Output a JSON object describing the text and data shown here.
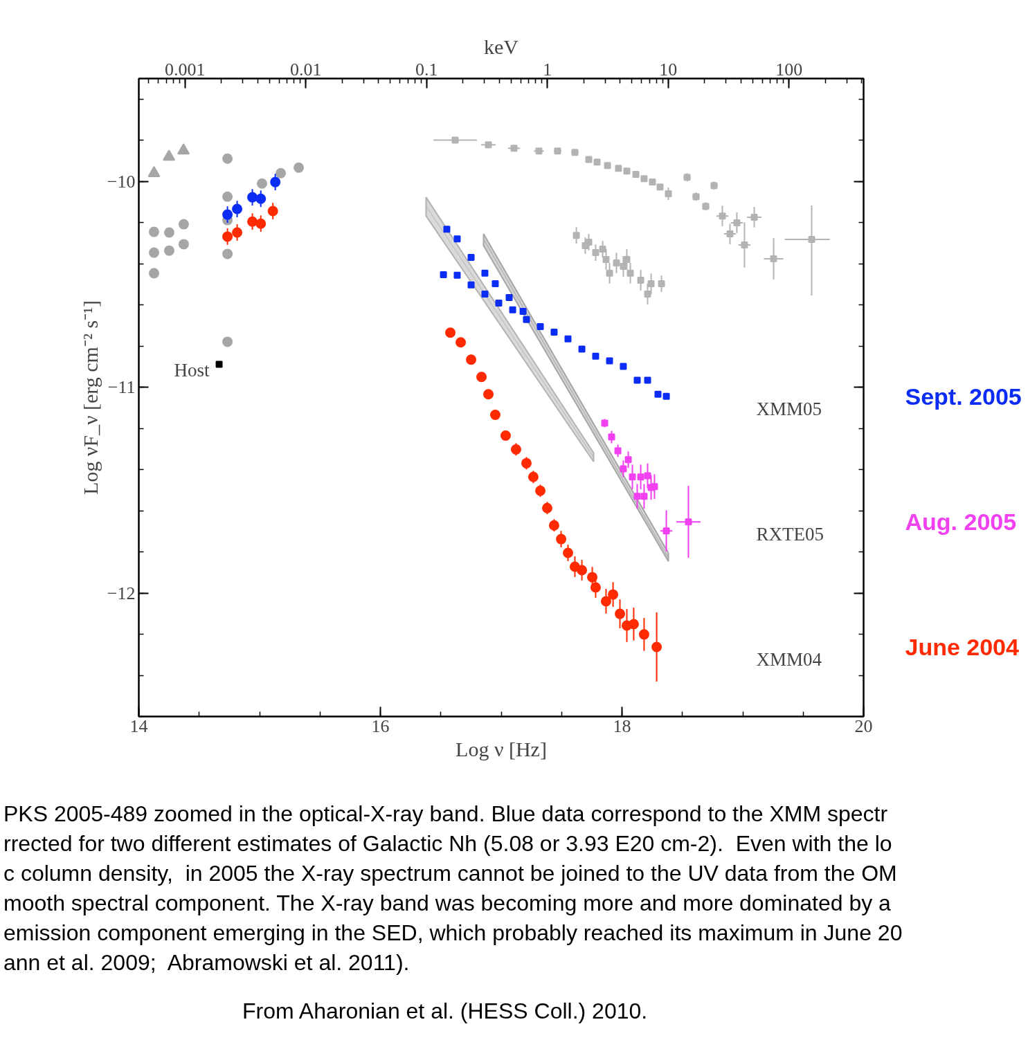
{
  "chart_data": {
    "type": "scatter",
    "xlabel": "Log ν [Hz]",
    "ylabel": "Log νF_ν [erg cm⁻² s⁻¹]",
    "x2label": "keV",
    "xlim": [
      14,
      20
    ],
    "xticks": [
      14,
      16,
      18,
      20
    ],
    "ylim": [
      -12.6,
      -9.5
    ],
    "yticks": [
      {
        "value": -10,
        "label": "−10"
      },
      {
        "value": -11,
        "label": "−11"
      },
      {
        "value": -12,
        "label": "−12"
      }
    ],
    "x2lim": [
      0.000414,
      414
    ],
    "x2ticks": [
      0.001,
      0.01,
      0.1,
      1,
      10,
      100
    ],
    "log": "x2",
    "grid": false,
    "tick_labels": "xy",
    "series": [
      {
        "type": "line",
        "color": "#b3b3b3",
        "x": [
          16.378,
          17.765
        ],
        "values": [
          -10.12,
          -11.34
        ],
        "lower": [
          -10.168,
          -11.362
        ],
        "upper": [
          -10.077,
          -11.319
        ]
      },
      {
        "type": "line",
        "color": "#a6a6a6",
        "x": [
          16.854,
          18.384
        ],
        "values": [
          -10.28,
          -11.83
        ],
        "lower": [
          -10.312,
          -11.846
        ],
        "upper": [
          -10.255,
          -11.805
        ]
      },
      {
        "type": "scatter",
        "marker": "triangle",
        "color": "#a6a6a6",
        "x": [
          14.126,
          14.25,
          14.37
        ],
        "values": [
          -9.96,
          -9.88,
          -9.85
        ]
      },
      {
        "type": "scatter",
        "marker": "circle",
        "color": "#a6a6a6",
        "x": [
          14.126,
          14.252,
          14.372,
          14.126,
          14.252,
          14.372,
          14.126,
          14.734,
          14.734,
          14.734,
          14.734,
          14.734,
          15.02,
          15.175,
          15.324
        ],
        "values": [
          -10.245,
          -10.248,
          -10.208,
          -10.346,
          -10.336,
          -10.305,
          -10.446,
          -9.889,
          -10.074,
          -10.188,
          -10.352,
          -10.779,
          -10.01,
          -9.96,
          -9.933
        ]
      },
      {
        "type": "scatter",
        "marker": "circle",
        "color": "#0a2cf5",
        "x": [
          14.734,
          14.814,
          14.94,
          15.01,
          15.13
        ],
        "values": [
          -10.161,
          -10.134,
          -10.077,
          -10.084,
          -10.003
        ],
        "errors": [
          0.04,
          0.04,
          0.04,
          0.04,
          0.04
        ]
      },
      {
        "type": "scatter",
        "marker": "circle",
        "color": "#ff2a00",
        "x": [
          14.734,
          14.814,
          14.94,
          15.01,
          15.11
        ],
        "values": [
          -10.268,
          -10.248,
          -10.195,
          -10.205,
          -10.144
        ],
        "errors": [
          0.04,
          0.04,
          0.04,
          0.04,
          0.04
        ]
      },
      {
        "type": "scatter",
        "marker": "square",
        "color": "#000000",
        "x": [
          14.665
        ],
        "values": [
          -10.889
        ]
      },
      {
        "type": "scatter",
        "marker": "square",
        "color": "#b3b3b3",
        "x": [
          16.619,
          16.894,
          17.106,
          17.312,
          17.467,
          17.61,
          17.725,
          17.794,
          17.88,
          17.971,
          18.04,
          18.115,
          18.183,
          18.252,
          18.315,
          18.384,
          18.539,
          18.613,
          18.693,
          18.762,
          18.831,
          18.894,
          18.951,
          19.014,
          19.095,
          19.255,
          19.57
        ],
        "values": [
          -9.799,
          -9.822,
          -9.839,
          -9.852,
          -9.852,
          -9.859,
          -9.893,
          -9.906,
          -9.923,
          -9.936,
          -9.95,
          -9.966,
          -9.987,
          -10.003,
          -10.027,
          -10.06,
          -9.98,
          -10.074,
          -10.121,
          -10.02,
          -10.168,
          -10.255,
          -10.201,
          -10.309,
          -10.174,
          -10.376,
          -10.282
        ],
        "errors": [
          null,
          null,
          null,
          null,
          null,
          null,
          null,
          null,
          null,
          null,
          null,
          null,
          null,
          null,
          null,
          0.03,
          0.02,
          0.02,
          0.02,
          0.02,
          0.05,
          0.05,
          0.05,
          0.11,
          0.05,
          0.1,
          [
            -10.554,
            -10.117
          ]
        ],
        "xerrors": [
          0.18,
          0.06,
          0.05,
          0.04,
          0.03,
          0.03,
          0.02,
          0.02,
          0.02,
          0.02,
          0.02,
          0.02,
          0.02,
          0.02,
          0.02,
          0.02,
          0.03,
          0.03,
          0.03,
          0.03,
          0.05,
          0.05,
          0.05,
          0.05,
          0.06,
          0.08,
          [
            19.347,
            19.72
          ]
        ]
      },
      {
        "type": "scatter",
        "marker": "square",
        "color": "#b3b3b3",
        "x": [
          17.622,
          17.696,
          17.782,
          17.868,
          17.954,
          18.011,
          18.069,
          18.155,
          18.241,
          18.327,
          18.212,
          17.897,
          18.04,
          17.725,
          17.84
        ],
        "values": [
          -10.262,
          -10.312,
          -10.346,
          -10.379,
          -10.396,
          -10.413,
          -10.446,
          -10.48,
          -10.497,
          -10.497,
          -10.547,
          -10.446,
          -10.379,
          -10.295,
          -10.329
        ],
        "errors": [
          0.04,
          0.04,
          0.04,
          0.05,
          0.05,
          0.05,
          0.05,
          0.05,
          0.05,
          0.04,
          0.05,
          0.05,
          0.05,
          0.04,
          0.04
        ]
      },
      {
        "type": "scatter",
        "marker": "square",
        "color": "#0a2cf5",
        "x": [
          16.55,
          16.636,
          16.751,
          16.865,
          16.951,
          17.066,
          17.181
        ],
        "values": [
          -10.232,
          -10.279,
          -10.369,
          -10.446,
          -10.497,
          -10.564,
          -10.631
        ]
      },
      {
        "type": "scatter",
        "marker": "square",
        "color": "#0a2cf5",
        "name": "Sept. 2005",
        "x": [
          16.522,
          16.636,
          16.751,
          16.865,
          16.98,
          17.095,
          17.209,
          17.324,
          17.438,
          17.553,
          17.668,
          17.782,
          17.897,
          18.011,
          18.126,
          18.212,
          18.298,
          18.367
        ],
        "values": [
          -10.453,
          -10.456,
          -10.503,
          -10.547,
          -10.591,
          -10.624,
          -10.671,
          -10.705,
          -10.732,
          -10.765,
          -10.815,
          -10.849,
          -10.872,
          -10.899,
          -10.966,
          -10.966,
          -11.034,
          -11.044
        ]
      },
      {
        "type": "scatter",
        "marker": "square",
        "color": "#f040f0",
        "name": "Aug. 2005",
        "x": [
          17.857,
          17.914,
          17.966,
          18.011,
          18.052,
          18.086,
          18.126,
          18.155,
          18.183,
          18.212,
          18.241,
          18.269,
          18.367,
          18.55
        ],
        "values": [
          -11.174,
          -11.242,
          -11.309,
          -11.396,
          -11.352,
          -11.436,
          -11.53,
          -11.436,
          -11.53,
          -11.43,
          -11.487,
          -11.483,
          -11.698,
          -11.654
        ],
        "errors": [
          0.02,
          0.03,
          0.03,
          0.04,
          0.04,
          0.06,
          0.06,
          0.06,
          0.06,
          0.06,
          0.06,
          0.06,
          0.1,
          0.175
        ],
        "xerrors": [
          0.02,
          0.02,
          0.02,
          0.02,
          0.02,
          0.02,
          0.02,
          0.02,
          0.02,
          0.02,
          0.02,
          0.02,
          0.05,
          0.1
        ]
      },
      {
        "type": "scatter",
        "marker": "circle",
        "color": "#ff2a00",
        "name": "June 2004",
        "x": [
          16.579,
          16.665,
          16.751,
          16.837,
          16.894,
          16.951,
          17.037,
          17.123,
          17.209,
          17.266,
          17.324,
          17.381,
          17.438,
          17.496,
          17.553,
          17.61,
          17.668,
          17.754,
          17.782,
          17.868,
          17.926,
          17.983,
          18.04,
          18.097,
          18.183,
          18.287
        ],
        "values": [
          -10.735,
          -10.782,
          -10.866,
          -10.95,
          -11.034,
          -11.134,
          -11.235,
          -11.302,
          -11.369,
          -11.436,
          -11.503,
          -11.587,
          -11.671,
          -11.738,
          -11.805,
          -11.872,
          -11.889,
          -11.923,
          -11.973,
          -12.04,
          -12.007,
          -12.101,
          -12.158,
          -12.151,
          -12.201,
          -12.262
        ],
        "errors": [
          0.02,
          0.02,
          0.02,
          0.02,
          0.02,
          0.02,
          0.02,
          0.03,
          0.03,
          0.03,
          0.03,
          0.03,
          0.03,
          0.04,
          0.04,
          0.05,
          0.05,
          0.05,
          0.05,
          0.06,
          0.06,
          0.07,
          0.08,
          0.08,
          0.08,
          0.168
        ]
      }
    ],
    "annotations": [
      {
        "text": "Host",
        "x": 14.665,
        "y": -10.889
      },
      "XMM05",
      "RXTE05",
      "XMM04",
      "PKS 2005-489 zoomed in the optical-X-ray band. Blue data correspond to the XMM spectr\nrrected for two different estimates of Galactic Nh (5.08 or 3.93 E20 cm-2).  Even with the lo\nc column density,  in 2005 the X-ray spectrum cannot be joined to the UV data from the OM\nmooth spectral component. The X-ray band was becoming more and more dominated by a\nemission component emerging in the SED, which probably reached its maximum in June 20\nann et al. 2009;  Abramowski et al. 2011).",
      "From Aharonian et al. (HESS Coll.) 2010."
    ]
  }
}
